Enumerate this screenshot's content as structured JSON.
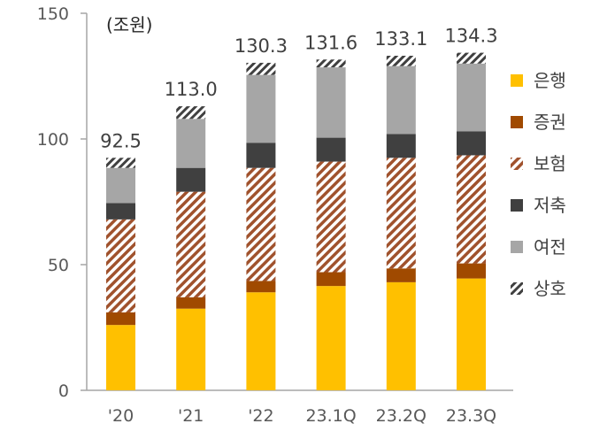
{
  "chart_data": {
    "type": "bar",
    "stacked": true,
    "unit_label": "(조원)",
    "categories": [
      "'20",
      "'21",
      "'22",
      "23.1Q",
      "23.2Q",
      "23.3Q"
    ],
    "totals": [
      "92.5",
      "113.0",
      "130.3",
      "131.6",
      "133.1",
      "134.3"
    ],
    "series": [
      {
        "name": "은행",
        "values": [
          26.0,
          32.5,
          39.0,
          41.5,
          43.0,
          44.5
        ],
        "color": "#FFC000",
        "fill": "solid"
      },
      {
        "name": "증권",
        "values": [
          5.0,
          4.5,
          4.5,
          5.5,
          5.5,
          6.0
        ],
        "color": "#A04A00",
        "fill": "solid"
      },
      {
        "name": "보험",
        "values": [
          37.0,
          42.0,
          45.0,
          44.0,
          44.0,
          43.0
        ],
        "color": "#A0522D",
        "fill": "hatch"
      },
      {
        "name": "저축",
        "values": [
          6.5,
          9.5,
          10.0,
          9.5,
          9.5,
          9.5
        ],
        "color": "#404040",
        "fill": "solid"
      },
      {
        "name": "여전",
        "values": [
          14.0,
          19.5,
          27.0,
          28.0,
          27.0,
          27.0
        ],
        "color": "#A6A6A6",
        "fill": "solid"
      },
      {
        "name": "상호",
        "values": [
          4.0,
          5.0,
          4.8,
          3.1,
          4.1,
          4.3
        ],
        "color": "#404040",
        "fill": "hatch"
      }
    ],
    "y_ticks": [
      "0",
      "50",
      "100",
      "150"
    ],
    "ylim": [
      0,
      150
    ],
    "grid": false,
    "legend_position": "right"
  }
}
